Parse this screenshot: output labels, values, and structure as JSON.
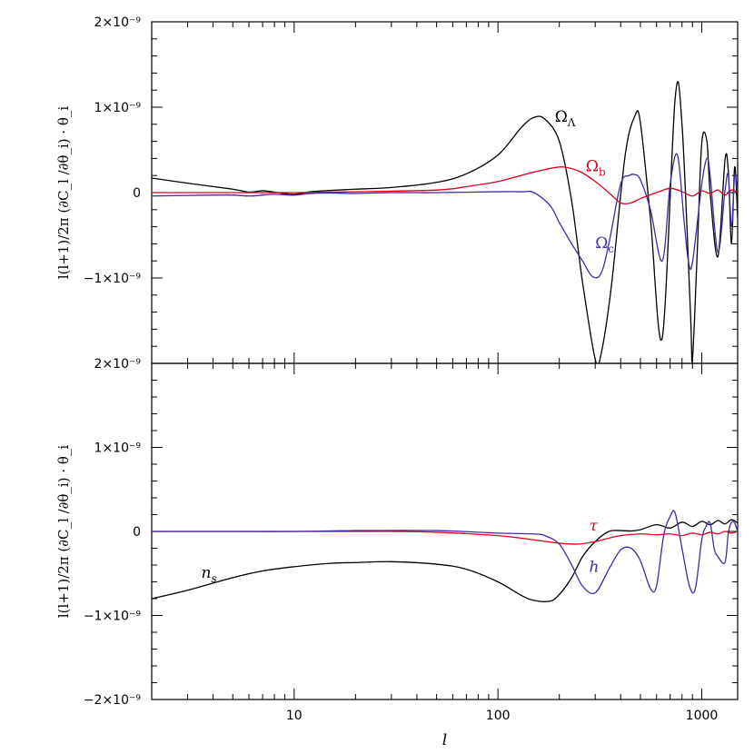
{
  "chart_data": [
    {
      "type": "line",
      "panel": "top",
      "xscale": "log",
      "xlim": [
        2,
        1500
      ],
      "ylim": [
        -2e-09,
        2e-09
      ],
      "yticks": [
        {
          "value": 2e-09,
          "label": "2×10⁻⁹"
        },
        {
          "value": 1e-09,
          "label": "1×10⁻⁹"
        },
        {
          "value": 0,
          "label": "0"
        },
        {
          "value": -1e-09,
          "label": "−1×10⁻⁹"
        }
      ],
      "ylabel": "l(l+1)/2π (∂C_l /∂θ_i) · θ_i",
      "series": [
        {
          "name": "Ω_Λ",
          "color": "#000000",
          "x": [
            2,
            3,
            5,
            6,
            7,
            8,
            10,
            12,
            15,
            20,
            30,
            50,
            70,
            100,
            130,
            150,
            170,
            200,
            230,
            260,
            300,
            320,
            360,
            420,
            470,
            500,
            560,
            640,
            740,
            800,
            880,
            900,
            950,
            1000,
            1060,
            1100,
            1200,
            1300,
            1350,
            1400,
            1450,
            1500
          ],
          "y": [
            1.7e-10,
            1.1e-10,
            4e-11,
            5e-12,
            2.2e-11,
            5e-12,
            -2e-11,
            1e-11,
            2.5e-11,
            4e-11,
            6e-11,
            1.2e-10,
            2.2e-10,
            4.4e-10,
            7.6e-10,
            8.8e-10,
            8.6e-10,
            6e-10,
            -1e-10,
            -1.05e-09,
            -1.95e-09,
            -1.9e-09,
            -1.1e-09,
            4.2e-10,
            9e-10,
            8.2e-10,
            -3e-10,
            -1.7e-09,
            1.1e-09,
            8e-10,
            -1.4e-09,
            -1.95e-09,
            -7e-10,
            5.8e-10,
            6e-10,
            -1e-11,
            -7.5e-10,
            3.8e-10,
            2.5e-10,
            -6e-10,
            3e-10,
            -3e-10
          ]
        },
        {
          "name": "Ω_b",
          "color": "#e0001b",
          "x": [
            2,
            5,
            10,
            20,
            50,
            70,
            100,
            150,
            200,
            230,
            260,
            300,
            350,
            400,
            450,
            500,
            600,
            700,
            800,
            900,
            1000,
            1100,
            1200,
            1300,
            1400,
            1500
          ],
          "y": [
            0,
            0,
            0,
            1e-11,
            3e-11,
            7e-11,
            1.3e-10,
            2.4e-10,
            3e-10,
            2.8e-10,
            2.3e-10,
            1.3e-10,
            -1e-12,
            -1.2e-10,
            -1.2e-10,
            -7e-11,
            0,
            5e-11,
            1e-11,
            -4e-11,
            2e-11,
            -1e-11,
            3e-11,
            -3e-11,
            3e-11,
            0
          ]
        },
        {
          "name": "Ω_c",
          "color": "#3f2aa8",
          "x": [
            2,
            4,
            5,
            6,
            7,
            8,
            10,
            12,
            15,
            20,
            30,
            50,
            100,
            130,
            150,
            180,
            200,
            230,
            260,
            290,
            320,
            350,
            400,
            440,
            470,
            500,
            560,
            640,
            700,
            760,
            820,
            860,
            900,
            1000,
            1060,
            1100,
            1200,
            1300,
            1350,
            1400,
            1450,
            1500
          ],
          "y": [
            -4e-11,
            -3e-11,
            -3e-11,
            -4e-11,
            -3e-11,
            -2e-11,
            -3e-11,
            -1e-11,
            -5e-12,
            -1e-11,
            0,
            0,
            1e-11,
            1e-11,
            0,
            -1.5e-10,
            -3.5e-10,
            -6e-10,
            -8e-10,
            -9.8e-10,
            -9.5e-10,
            -6e-10,
            1e-10,
            2e-10,
            2.1e-10,
            1.5e-10,
            -2e-10,
            -8e-10,
            1e-10,
            4.4e-10,
            -3.5e-10,
            -8e-10,
            -8.2e-10,
            1e-10,
            4e-10,
            2e-10,
            -7e-10,
            2e-11,
            2e-10,
            -4e-10,
            2e-10,
            0
          ]
        }
      ],
      "labels": [
        {
          "text": "Ω",
          "sub": "Λ",
          "color": "#000000",
          "x": 190,
          "y": 8.3e-10
        },
        {
          "text": "Ω",
          "sub": "b",
          "color": "#e0001b",
          "x": 270,
          "y": 2.5e-10
        },
        {
          "text": "Ω",
          "sub": "c",
          "color": "#3f2aa8",
          "x": 300,
          "y": -6.5e-10
        }
      ]
    },
    {
      "type": "line",
      "panel": "bottom",
      "xscale": "log",
      "xlim": [
        2,
        1500
      ],
      "ylim": [
        -2e-09,
        2e-09
      ],
      "yticks": [
        {
          "value": 2e-09,
          "label": "2×10⁻⁹"
        },
        {
          "value": 1e-09,
          "label": "1×10⁻⁹"
        },
        {
          "value": 0,
          "label": "0"
        },
        {
          "value": -1e-09,
          "label": "−1×10⁻⁹"
        },
        {
          "value": -2e-09,
          "label": "−2×10⁻⁹"
        }
      ],
      "xticks": [
        {
          "value": 10,
          "label": "10"
        },
        {
          "value": 100,
          "label": "100"
        },
        {
          "value": 1000,
          "label": "1000"
        }
      ],
      "xlabel": "l",
      "ylabel": "l(l+1)/2π (∂C_l /∂θ_i) · θ_i",
      "series": [
        {
          "name": "n_s",
          "color": "#000000",
          "x": [
            2,
            3,
            5,
            7,
            10,
            15,
            20,
            30,
            50,
            70,
            100,
            130,
            150,
            180,
            200,
            230,
            260,
            300,
            350,
            400,
            450,
            500,
            600,
            700,
            800,
            900,
            1000,
            1100,
            1200,
            1300,
            1400,
            1500
          ],
          "y": [
            -8e-10,
            -7e-10,
            -5.5e-10,
            -4.7e-10,
            -4.2e-10,
            -3.8e-10,
            -3.7e-10,
            -3.6e-10,
            -3.9e-10,
            -4.5e-10,
            -6e-10,
            -7.6e-10,
            -8.2e-10,
            -8.3e-10,
            -7.5e-10,
            -5.5e-10,
            -3e-10,
            -1.2e-10,
            0,
            1e-11,
            5e-12,
            2e-11,
            8e-11,
            4e-11,
            1.1e-10,
            6e-11,
            1.2e-10,
            8e-11,
            1.3e-10,
            9e-11,
            1.4e-10,
            1e-10
          ]
        },
        {
          "name": "τ",
          "color": "#e0001b",
          "x": [
            2,
            10,
            30,
            50,
            100,
            150,
            200,
            250,
            300,
            350,
            400,
            500,
            600,
            700,
            800,
            900,
            1000,
            1100,
            1200,
            1300,
            1400,
            1500
          ],
          "y": [
            0,
            0,
            0,
            -1e-11,
            -5e-11,
            -1e-10,
            -1.4e-10,
            -1.5e-10,
            -1.2e-10,
            -8e-11,
            -5e-11,
            -3e-11,
            -4e-11,
            -3e-11,
            -5e-11,
            -2e-11,
            -4e-11,
            -1e-11,
            -3e-11,
            0,
            -2e-11,
            0
          ]
        },
        {
          "name": "h",
          "color": "#3f2aa8",
          "x": [
            2,
            5,
            10,
            20,
            50,
            100,
            150,
            170,
            200,
            230,
            260,
            300,
            350,
            400,
            450,
            500,
            560,
            600,
            650,
            700,
            740,
            800,
            870,
            930,
            1000,
            1050,
            1100,
            1150,
            1200,
            1300,
            1350,
            1400,
            1450,
            1500
          ],
          "y": [
            0,
            0,
            0,
            1e-11,
            1e-11,
            -2e-11,
            -3e-11,
            -5e-11,
            -1.5e-10,
            -4e-10,
            -6.5e-10,
            -7.3e-10,
            -4.5e-10,
            -2.2e-10,
            -2e-10,
            -3.5e-10,
            -6.8e-10,
            -6.5e-10,
            -5e-11,
            1.8e-10,
            2.2e-10,
            -2e-10,
            -6.5e-10,
            -6.8e-10,
            -1e-10,
            6e-11,
            1e-10,
            -2e-10,
            -3e-10,
            -3.7e-10,
            -2e-11,
            1.1e-10,
            1e-10,
            0
          ]
        }
      ],
      "labels": [
        {
          "text": "n",
          "sub": "s",
          "color": "#000000",
          "x": 3.5,
          "y": -5.5e-10
        },
        {
          "text": "τ",
          "sub": "",
          "color": "#e0001b",
          "x": 280,
          "y": 5e-12
        },
        {
          "text": "h",
          "sub": "",
          "color": "#3f2aa8",
          "x": 280,
          "y": -4.8e-10
        }
      ]
    }
  ]
}
